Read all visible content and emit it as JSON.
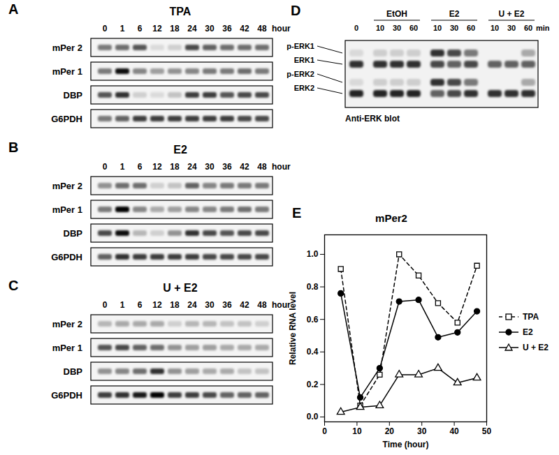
{
  "panels": [
    {
      "letter": "A",
      "title": "TPA",
      "unit": "hour",
      "lanes": [
        "0",
        "1",
        "6",
        "12",
        "18",
        "24",
        "30",
        "36",
        "42",
        "48"
      ],
      "rows": [
        {
          "label": "mPer 2",
          "intensity": [
            0.5,
            0.55,
            0.65,
            0.1,
            0.15,
            0.7,
            0.6,
            0.55,
            0.55,
            0.55
          ]
        },
        {
          "label": "mPer 1",
          "intensity": [
            0.5,
            0.95,
            0.45,
            0.35,
            0.4,
            0.45,
            0.5,
            0.5,
            0.55,
            0.5
          ]
        },
        {
          "label": "DBP",
          "intensity": [
            0.65,
            0.8,
            0.15,
            0.1,
            0.2,
            0.75,
            0.75,
            0.65,
            0.7,
            0.7
          ]
        },
        {
          "label": "G6PDH",
          "intensity": [
            0.5,
            0.6,
            0.75,
            0.75,
            0.75,
            0.75,
            0.75,
            0.75,
            0.7,
            0.7
          ]
        }
      ]
    },
    {
      "letter": "B",
      "title": "E2",
      "unit": "hour",
      "lanes": [
        "0",
        "1",
        "6",
        "12",
        "18",
        "24",
        "30",
        "36",
        "42",
        "48"
      ],
      "rows": [
        {
          "label": "mPer 2",
          "intensity": [
            0.4,
            0.55,
            0.55,
            0.15,
            0.2,
            0.6,
            0.45,
            0.5,
            0.5,
            0.5
          ]
        },
        {
          "label": "mPer 1",
          "intensity": [
            0.5,
            1.0,
            0.45,
            0.3,
            0.35,
            0.45,
            0.45,
            0.5,
            0.55,
            0.5
          ]
        },
        {
          "label": "DBP",
          "intensity": [
            0.7,
            0.95,
            0.25,
            0.15,
            0.4,
            0.8,
            0.7,
            0.65,
            0.7,
            0.7
          ]
        },
        {
          "label": "G6PDH",
          "intensity": [
            0.6,
            0.8,
            0.75,
            0.75,
            0.75,
            0.75,
            0.7,
            0.7,
            0.7,
            0.7
          ]
        }
      ]
    },
    {
      "letter": "C",
      "title": "U + E2",
      "unit": "hour",
      "lanes": [
        "0",
        "1",
        "6",
        "12",
        "18",
        "24",
        "30",
        "36",
        "42",
        "48"
      ],
      "rows": [
        {
          "label": "mPer 2",
          "intensity": [
            0.25,
            0.3,
            0.3,
            0.3,
            0.15,
            0.25,
            0.25,
            0.2,
            0.2,
            0.15
          ]
        },
        {
          "label": "mPer 1",
          "intensity": [
            0.65,
            0.7,
            0.6,
            0.55,
            0.4,
            0.35,
            0.35,
            0.3,
            0.3,
            0.3
          ]
        },
        {
          "label": "DBP",
          "intensity": [
            0.4,
            0.45,
            0.55,
            0.8,
            0.4,
            0.35,
            0.3,
            0.3,
            0.2,
            0.2
          ]
        },
        {
          "label": "G6PDH",
          "intensity": [
            0.75,
            0.8,
            0.9,
            1.0,
            0.75,
            0.75,
            0.7,
            0.6,
            0.6,
            0.6
          ]
        }
      ]
    }
  ],
  "erk_blot": {
    "letter": "D",
    "unit": "min",
    "caption": "Anti-ERK blot",
    "bands": [
      "p-ERK1",
      "ERK1",
      "p-ERK2",
      "ERK2"
    ],
    "lanes": [
      {
        "label": "0",
        "intensity": [
          0.1,
          0.8,
          0.1,
          0.85
        ]
      },
      {
        "label": "10",
        "group": "EtOH",
        "intensity": [
          0.15,
          0.8,
          0.15,
          0.85
        ]
      },
      {
        "label": "30",
        "group": "EtOH",
        "intensity": [
          0.15,
          0.8,
          0.15,
          0.85
        ]
      },
      {
        "label": "60",
        "group": "EtOH",
        "intensity": [
          0.15,
          0.8,
          0.15,
          0.85
        ]
      },
      {
        "label": "10",
        "group": "E2",
        "intensity": [
          0.8,
          0.7,
          0.8,
          0.6
        ]
      },
      {
        "label": "30",
        "group": "E2",
        "intensity": [
          0.7,
          0.6,
          0.7,
          0.7
        ]
      },
      {
        "label": "60",
        "group": "E2",
        "intensity": [
          0.5,
          0.7,
          0.5,
          0.8
        ]
      },
      {
        "label": "10",
        "group": "U + E2",
        "intensity": [
          0.0,
          0.6,
          0.0,
          0.8
        ]
      },
      {
        "label": "30",
        "group": "U + E2",
        "intensity": [
          0.0,
          0.6,
          0.0,
          0.8
        ]
      },
      {
        "label": "60",
        "group": "U + E2",
        "intensity": [
          0.3,
          0.6,
          0.3,
          0.8
        ]
      }
    ]
  },
  "chart_data": {
    "type": "line",
    "title": "mPer2",
    "annotations": [
      "E"
    ],
    "x_label": "Time (hour)",
    "y_label": "Relative RNA level",
    "x": [
      5,
      11,
      17,
      23,
      29,
      35,
      41,
      47
    ],
    "xlim": [
      0,
      50
    ],
    "xticks": [
      0,
      10,
      20,
      30,
      40,
      50
    ],
    "ylim": [
      -0.03,
      1.12
    ],
    "yticks": [
      {
        "value": 0,
        "label": "0.0"
      },
      {
        "value": 0.2,
        "label": "0.2"
      },
      {
        "value": 0.4,
        "label": "0.4"
      },
      {
        "value": 0.6,
        "label": "0.6"
      },
      {
        "value": 0.8,
        "label": "0.8"
      },
      {
        "value": 1,
        "label": "1.0"
      }
    ],
    "grid": false,
    "legend": "right",
    "series": [
      {
        "name": "TPA",
        "color": "#000000",
        "marker": "square_open",
        "line_style": "dashed",
        "values": [
          0.91,
          0.07,
          0.26,
          1.0,
          0.87,
          0.7,
          0.58,
          0.93
        ]
      },
      {
        "name": "E2",
        "color": "#000000",
        "marker": "circle",
        "line_style": "solid",
        "values": [
          0.76,
          0.12,
          0.3,
          0.71,
          0.72,
          0.49,
          0.52,
          0.65
        ]
      },
      {
        "name": "U + E2",
        "color": "#000000",
        "marker": "triangle_open",
        "line_style": "solid",
        "values": [
          0.03,
          0.06,
          0.07,
          0.26,
          0.26,
          0.3,
          0.21,
          0.24
        ]
      }
    ]
  }
}
